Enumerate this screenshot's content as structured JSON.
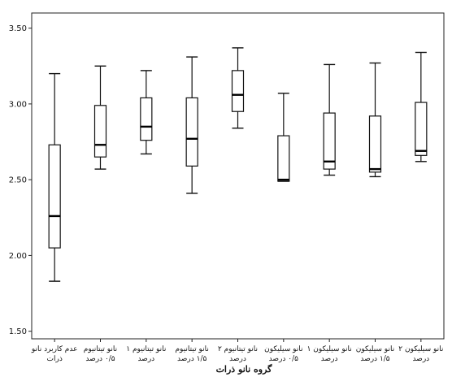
{
  "chart_data": {
    "type": "boxplot",
    "title": "",
    "xlabel": "گروه نانو ذرات",
    "ylabel": "",
    "ylim": [
      1.45,
      3.6
    ],
    "yticks": [
      "1.50",
      "2.00",
      "2.50",
      "3.00",
      "3.50"
    ],
    "grid": false,
    "legend": "none",
    "categories": [
      [
        "عدم کاربرد نانو",
        "ذرات"
      ],
      [
        "نانو تیتانیوم",
        "۰/۵ درصد"
      ],
      [
        "نانو تیتانیوم ۱",
        "درصد"
      ],
      [
        "نانو تیتانیوم",
        "۱/۵ درصد"
      ],
      [
        "نانو تیتانیوم ۲",
        "درصد"
      ],
      [
        "نانو سیلیکون",
        "۰/۵ درصد"
      ],
      [
        "نانو سیلیکون ۱",
        "درصد"
      ],
      [
        "نانو سیلیکون",
        "۱/۵ درصد"
      ],
      [
        "نانو سیلیکون ۲",
        "درصد"
      ]
    ],
    "boxes": [
      {
        "min": 1.83,
        "q1": 2.05,
        "median": 2.26,
        "q3": 2.73,
        "max": 3.2
      },
      {
        "min": 2.57,
        "q1": 2.65,
        "median": 2.73,
        "q3": 2.99,
        "max": 3.25
      },
      {
        "min": 2.67,
        "q1": 2.76,
        "median": 2.85,
        "q3": 3.04,
        "max": 3.22
      },
      {
        "min": 2.41,
        "q1": 2.59,
        "median": 2.77,
        "q3": 3.04,
        "max": 3.31
      },
      {
        "min": 2.84,
        "q1": 2.95,
        "median": 3.06,
        "q3": 3.22,
        "max": 3.37
      },
      {
        "min": 2.49,
        "q1": 2.49,
        "median": 2.5,
        "q3": 2.79,
        "max": 3.07
      },
      {
        "min": 2.53,
        "q1": 2.57,
        "median": 2.62,
        "q3": 2.94,
        "max": 3.26
      },
      {
        "min": 2.52,
        "q1": 2.55,
        "median": 2.57,
        "q3": 2.92,
        "max": 3.27
      },
      {
        "min": 2.62,
        "q1": 2.66,
        "median": 2.69,
        "q3": 3.01,
        "max": 3.34
      }
    ]
  }
}
